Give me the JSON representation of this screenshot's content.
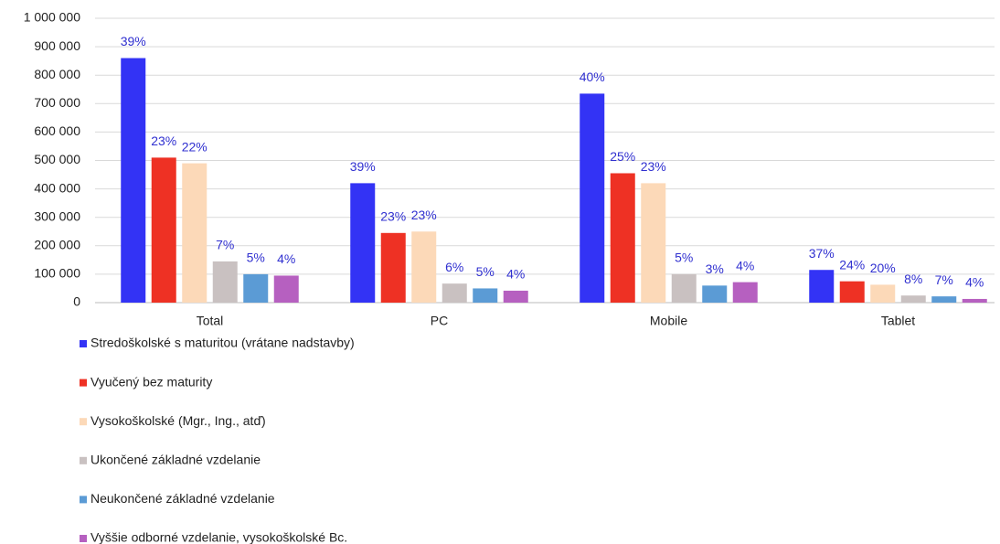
{
  "chart_data": {
    "type": "bar",
    "categories": [
      "Total",
      "PC",
      "Mobile",
      "Tablet"
    ],
    "series": [
      {
        "name": "Stredoškolské s maturitou (vrátane nadstavby)",
        "color": "#3333f5",
        "values": [
          860000,
          420000,
          735000,
          115000
        ],
        "value_labels": [
          "39%",
          "39%",
          "40%",
          "37%"
        ]
      },
      {
        "name": "Vyučený bez maturity",
        "color": "#ee3124",
        "values": [
          510000,
          245000,
          455000,
          75000
        ],
        "value_labels": [
          "23%",
          "23%",
          "25%",
          "24%"
        ]
      },
      {
        "name": "Vysokoškolské (Mgr., Ing., atď)",
        "color": "#fcd9b8",
        "values": [
          490000,
          250000,
          420000,
          63000
        ],
        "value_labels": [
          "22%",
          "23%",
          "23%",
          "20%"
        ]
      },
      {
        "name": "Ukončené základné vzdelanie",
        "color": "#c9c1c1",
        "values": [
          145000,
          67000,
          100000,
          25000
        ],
        "value_labels": [
          "7%",
          "6%",
          "5%",
          "8%"
        ]
      },
      {
        "name": "Neukončené základné vzdelanie",
        "color": "#5b9bd5",
        "values": [
          100000,
          50000,
          60000,
          22000
        ],
        "value_labels": [
          "5%",
          "5%",
          "3%",
          "7%"
        ]
      },
      {
        "name": "Vyššie odborné vzdelanie, vysokoškolské Bc.",
        "color": "#b660c0",
        "values": [
          95000,
          42000,
          72000,
          13000
        ],
        "value_labels": [
          "4%",
          "4%",
          "4%",
          "4%"
        ]
      }
    ],
    "ylim": [
      0,
      1000000
    ],
    "yticks": [
      0,
      {
        "value": 100000,
        "label": "100 000"
      },
      {
        "value": 200000,
        "label": "200 000"
      },
      {
        "value": 300000,
        "label": "300 000"
      },
      {
        "value": 400000,
        "label": "400 000"
      },
      {
        "value": 500000,
        "label": "500 000"
      },
      {
        "value": 600000,
        "label": "600 000"
      },
      {
        "value": 700000,
        "label": "700 000"
      },
      {
        "value": 800000,
        "label": "800 000"
      },
      {
        "value": 900000,
        "label": "900 000"
      },
      {
        "value": 1000000,
        "label": "1 000 000"
      }
    ],
    "grid": true,
    "legend": "bottom-left"
  }
}
